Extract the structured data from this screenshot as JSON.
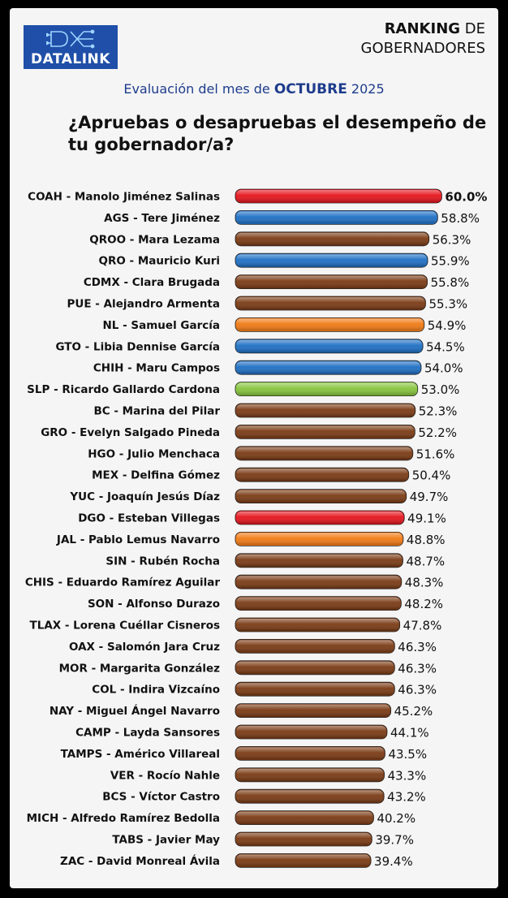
{
  "brand": {
    "logo_text": "DATALINK",
    "logo_icon": "circuit-dx-icon",
    "logo_color": "#1f4fa8"
  },
  "header": {
    "ranking_bold": "RANKING",
    "ranking_rest": " DE",
    "ranking_line2": "GOBERNADORES",
    "subtitle_prefix": "Evaluación del mes de ",
    "subtitle_month": "OCTUBRE",
    "subtitle_year": " 2025",
    "question": "¿Apruebas o desapruebas el desempeño de tu gobernador/a?"
  },
  "colors": {
    "red": "#e5141c",
    "blue": "#1e6fc4",
    "brown": "#7a3a14",
    "orange": "#f07a14",
    "green": "#86c43c"
  },
  "chart_data": {
    "type": "bar",
    "orientation": "horizontal",
    "categories": [
      "COAH - Manolo Jiménez Salinas",
      "AGS - Tere Jiménez",
      "QROO - Mara Lezama",
      "QRO - Mauricio Kuri",
      "CDMX - Clara Brugada",
      "PUE - Alejandro Armenta",
      "NL - Samuel García",
      "GTO - Libia Dennise García",
      "CHIH - Maru Campos",
      "SLP - Ricardo Gallardo Cardona",
      "BC - Marina del Pilar",
      "GRO - Evelyn Salgado Pineda",
      "HGO - Julio Menchaca",
      "MEX - Delfina Gómez",
      "YUC - Joaquín Jesús Díaz",
      "DGO - Esteban Villegas",
      "JAL - Pablo Lemus Navarro",
      "SIN - Rubén Rocha",
      "CHIS - Eduardo Ramírez Aguilar",
      "SON - Alfonso Durazo",
      "TLAX - Lorena Cuéllar Cisneros",
      "OAX - Salomón Jara Cruz",
      "MOR - Margarita González",
      "COL - Indira Vizcaíno",
      "NAY - Miguel Ángel Navarro",
      "CAMP - Layda Sansores",
      "TAMPS - Américo Villareal",
      "VER - Rocío Nahle",
      "BCS - Víctor Castro",
      "MICH - Alfredo Ramírez Bedolla",
      "TABS -  Javier May",
      "ZAC - David Monreal Ávila"
    ],
    "values": [
      60.0,
      58.8,
      56.3,
      55.9,
      55.8,
      55.3,
      54.9,
      54.5,
      54.0,
      53.0,
      52.3,
      52.2,
      51.6,
      50.4,
      49.7,
      49.1,
      48.8,
      48.7,
      48.3,
      48.2,
      47.8,
      46.3,
      46.3,
      46.3,
      45.2,
      44.1,
      43.5,
      43.3,
      43.2,
      40.2,
      39.7,
      39.4
    ],
    "value_labels": [
      "60.0%",
      "58.8%",
      "56.3%",
      "55.9%",
      "55.8%",
      "55.3%",
      "54.9%",
      "54.5%",
      "54.0%",
      "53.0%",
      "52.3%",
      "52.2%",
      "51.6%",
      "50.4%",
      "49.7%",
      "49.1%",
      "48.8%",
      "48.7%",
      "48.3%",
      "48.2%",
      "47.8%",
      "46.3%",
      "46.3%",
      "46.3%",
      "45.2%",
      "44.1%",
      "43.5%",
      "43.3%",
      "43.2%",
      "40.2%",
      "39.7%",
      "39.4%"
    ],
    "bar_colors": [
      "red",
      "blue",
      "brown",
      "blue",
      "brown",
      "brown",
      "orange",
      "blue",
      "blue",
      "green",
      "brown",
      "brown",
      "brown",
      "brown",
      "brown",
      "red",
      "orange",
      "brown",
      "brown",
      "brown",
      "brown",
      "brown",
      "brown",
      "brown",
      "brown",
      "brown",
      "brown",
      "brown",
      "brown",
      "brown",
      "brown",
      "brown"
    ],
    "unit": "%"
  }
}
